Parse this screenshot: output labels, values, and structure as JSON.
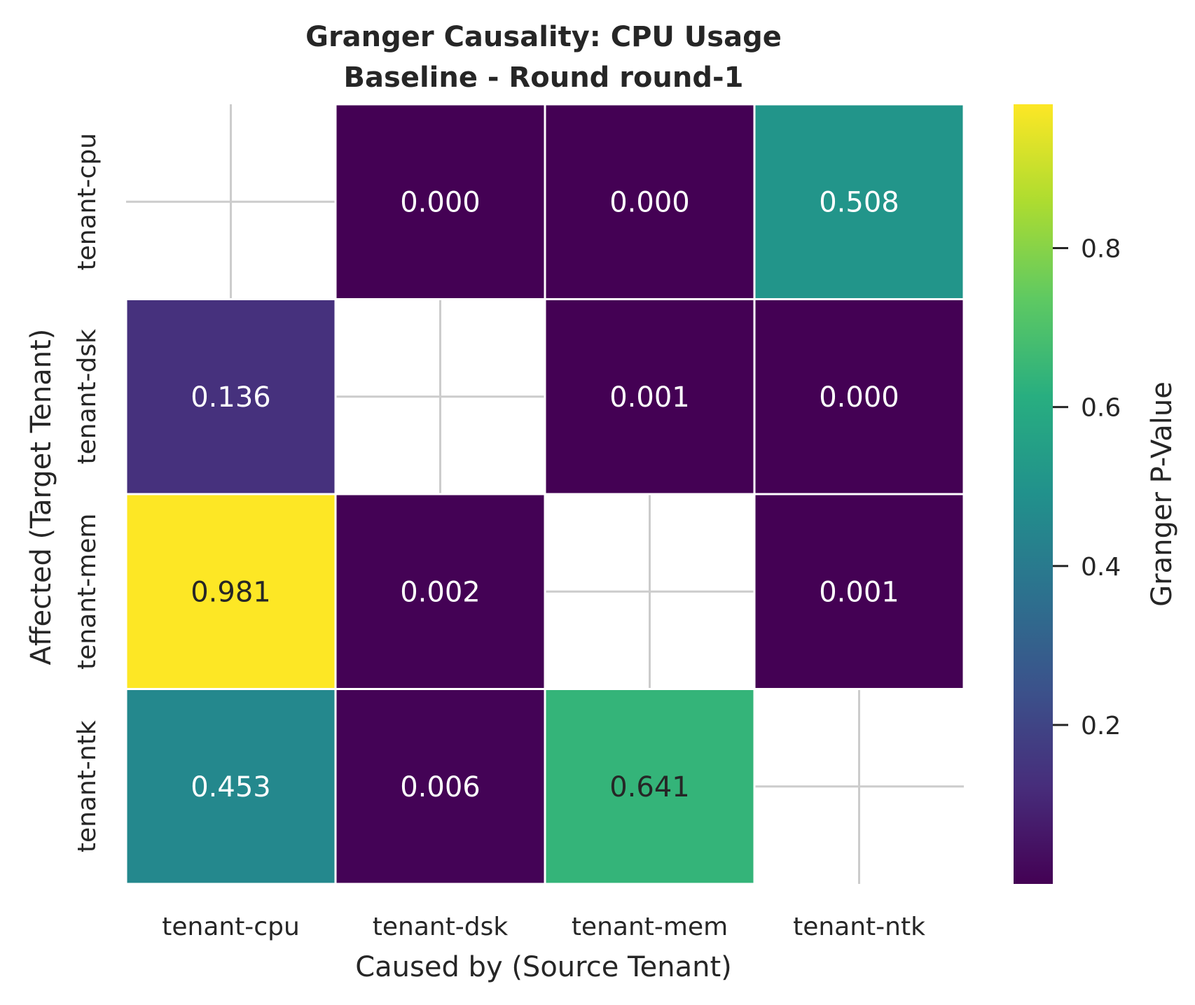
{
  "chart_data": {
    "type": "heatmap",
    "title": "Granger Causality: CPU Usage",
    "subtitle": "Baseline - Round round-1",
    "xlabel": "Caused by (Source Tenant)",
    "ylabel": "Affected (Target Tenant)",
    "x_categories": [
      "tenant-cpu",
      "tenant-dsk",
      "tenant-mem",
      "tenant-ntk"
    ],
    "y_categories": [
      "tenant-cpu",
      "tenant-dsk",
      "tenant-mem",
      "tenant-ntk"
    ],
    "values": [
      [
        null,
        0.0,
        0.0,
        0.508
      ],
      [
        0.136,
        null,
        0.001,
        0.0
      ],
      [
        0.981,
        0.002,
        null,
        0.001
      ],
      [
        0.453,
        0.006,
        0.641,
        null
      ]
    ],
    "value_labels": [
      [
        "",
        "0.000",
        "0.000",
        "0.508"
      ],
      [
        "0.136",
        "",
        "0.001",
        "0.000"
      ],
      [
        "0.981",
        "0.002",
        "",
        "0.001"
      ],
      [
        "0.453",
        "0.006",
        "0.641",
        ""
      ]
    ],
    "colormap": "viridis",
    "colorbar": {
      "label": "Granger P-Value",
      "range": [
        0.0,
        0.981
      ],
      "ticks": [
        0.2,
        0.4,
        0.6,
        0.8
      ],
      "tick_labels": [
        "0.2",
        "0.4",
        "0.6",
        "0.8"
      ]
    },
    "grid": true
  }
}
